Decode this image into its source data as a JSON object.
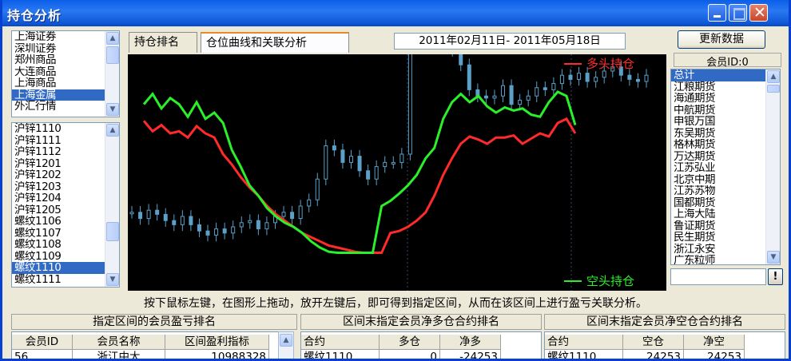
{
  "window": {
    "title": "持仓分析"
  },
  "markets": {
    "items": [
      "上海证券",
      "深圳证券",
      "郑州商品",
      "大连商品",
      "上海商品",
      "上海金属",
      "外汇行情"
    ],
    "selected": 5
  },
  "contracts": {
    "items": [
      "沪锌1110",
      "沪锌1111",
      "沪锌1112",
      "沪锌1201",
      "沪锌1202",
      "沪锌1203",
      "沪锌1204",
      "沪锌1205",
      "螺纹1106",
      "螺纹1107",
      "螺纹1108",
      "螺纹1109",
      "螺纹1110",
      "螺纹1111"
    ],
    "selected": 12
  },
  "tabs": {
    "rank": "持仓排名",
    "curve": "仓位曲线和关联分析"
  },
  "date_range": "2011年02月11日- 2011年05月18日",
  "refresh_button": "更新数据",
  "member_id_label": "会员ID:0",
  "members": {
    "items": [
      "总计",
      "江粮期货",
      "海通期货",
      "中航期货",
      "申银万国",
      "东吴期货",
      "格林期货",
      "万达期货",
      "江苏弘业",
      "北京中期",
      "江苏苏物",
      "国都期货",
      "上海大陆",
      "鲁证期货",
      "民生期货",
      "浙江永安",
      "广东粒师"
    ],
    "selected": 0
  },
  "search_button": "!",
  "chart_data": {
    "type": "line",
    "legend_long": "多头持仓",
    "legend_short": "空头持仓",
    "colors": {
      "long": "#ff2a2a",
      "short": "#2af02a",
      "price": "#5aa0c8",
      "grid": "#3a4a6a"
    },
    "long": [
      152,
      142,
      148,
      140,
      142,
      136,
      147,
      140,
      136,
      120,
      110,
      98,
      88,
      80,
      70,
      62,
      56,
      50,
      44,
      40,
      36,
      32,
      30,
      28,
      26,
      25,
      25,
      25,
      44,
      46,
      50,
      56,
      64,
      80,
      100,
      116,
      130,
      137,
      134,
      130,
      136,
      136,
      138,
      130,
      135,
      140,
      137,
      150,
      154,
      140
    ],
    "short": [
      168,
      178,
      164,
      174,
      168,
      156,
      170,
      154,
      160,
      150,
      124,
      108,
      90,
      80,
      68,
      60,
      54,
      50,
      44,
      36,
      30,
      26,
      25,
      25,
      25,
      25,
      25,
      70,
      75,
      82,
      90,
      100,
      116,
      126,
      154,
      170,
      178,
      170,
      176,
      166,
      160,
      165,
      162,
      164,
      158,
      156,
      170,
      180,
      176,
      148
    ],
    "price_close": [
      64,
      58,
      66,
      62,
      56,
      52,
      60,
      52,
      46,
      42,
      48,
      44,
      50,
      54,
      56,
      48,
      54,
      60,
      64,
      58,
      70,
      76,
      96,
      128,
      124,
      112,
      118,
      104,
      96,
      108,
      112,
      112,
      120,
      232,
      240,
      236,
      250,
      228,
      220,
      206,
      182,
      176,
      174,
      176,
      186,
      168,
      172,
      176,
      184,
      182,
      188,
      196,
      192,
      198,
      190,
      194,
      200,
      204,
      196,
      192,
      190,
      196
    ]
  },
  "hint": "按下鼠标左键，在图形上拖动，放开左键后，即可得到指定区间，从而在该区间上进行盈亏关联分析。",
  "panels": [
    {
      "title": "指定区间的会员盈亏排名",
      "headers": [
        "会员ID",
        "会员名称",
        "区间盈利指标"
      ],
      "row": [
        "56",
        "浙江中大",
        "10988328"
      ]
    },
    {
      "title": "区间末指定会员净多仓合约排名",
      "headers": [
        "合约",
        "多仓",
        "净多"
      ],
      "row": [
        "螺纹1110",
        "0",
        "-24253"
      ]
    },
    {
      "title": "区间末指定会员净空仓合约排名",
      "headers": [
        "合约",
        "空仓",
        "净空"
      ],
      "row": [
        "螺纹1110",
        "24253",
        "24253"
      ]
    }
  ]
}
